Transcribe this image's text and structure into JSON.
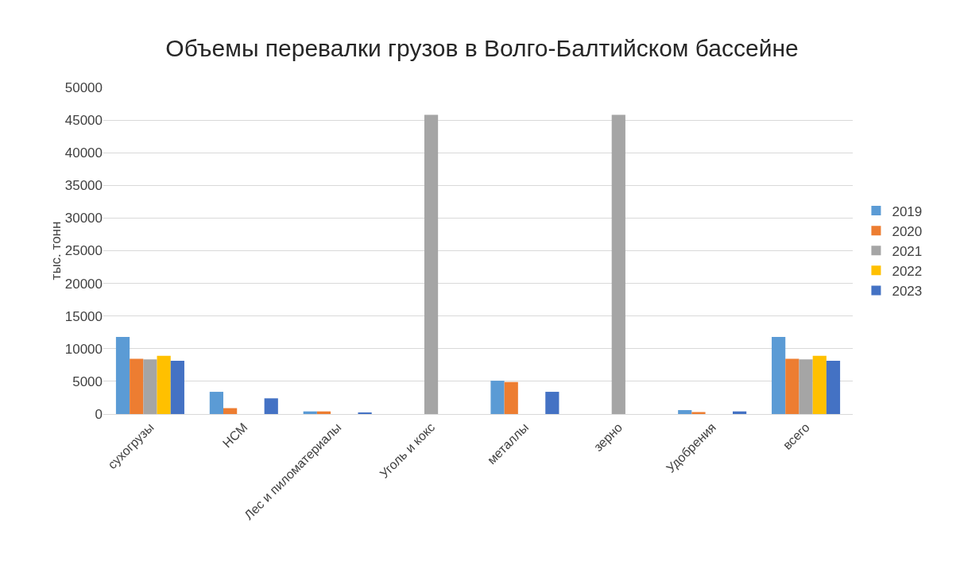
{
  "chart_data": {
    "type": "bar",
    "title": "Объемы перевалки грузов в Волго-Балтийском бассейне",
    "ylabel": "тыс. тонн",
    "categories": [
      "сухогрузы",
      "НСМ",
      "Лес и пиломатериалы",
      "Уголь и кокс",
      "металлы",
      "зерно",
      "Удобрения",
      "всего"
    ],
    "series": [
      {
        "name": "2019",
        "color": "#5b9bd5",
        "values": [
          11800,
          3400,
          400,
          null,
          5100,
          null,
          600,
          11800
        ]
      },
      {
        "name": "2020",
        "color": "#ed7d31",
        "values": [
          8450,
          900,
          400,
          null,
          4900,
          null,
          300,
          8450
        ]
      },
      {
        "name": "2021",
        "color": "#a5a5a5",
        "values": [
          8350,
          null,
          null,
          45800,
          null,
          45800,
          null,
          8350
        ]
      },
      {
        "name": "2022",
        "color": "#ffc000",
        "values": [
          8900,
          null,
          null,
          null,
          null,
          null,
          null,
          8900
        ]
      },
      {
        "name": "2023",
        "color": "#4472c4",
        "values": [
          8150,
          2400,
          200,
          null,
          3400,
          null,
          400,
          8150
        ]
      }
    ],
    "ylim": [
      0,
      50000
    ],
    "yticks": [
      0,
      5000,
      10000,
      15000,
      20000,
      25000,
      30000,
      35000,
      40000,
      45000,
      50000
    ],
    "grid": "y",
    "legend": "right"
  }
}
